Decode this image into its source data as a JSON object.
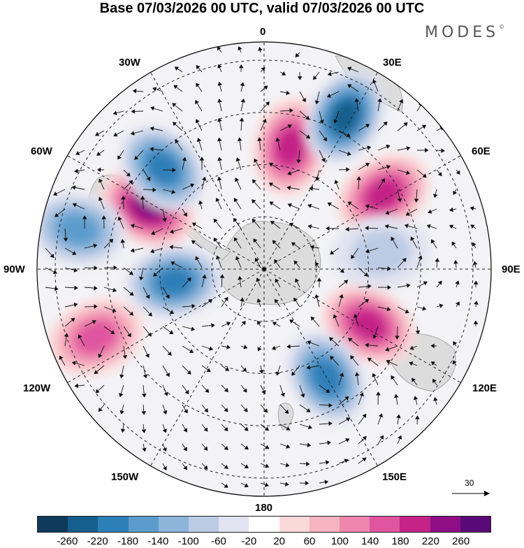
{
  "title": "Base 07/03/2026 00 UTC, valid 07/03/2026 00 UTC",
  "brand": "MODES",
  "brand_mark": "©",
  "longitude_labels": {
    "lon_0": "0",
    "lon_30e": "30E",
    "lon_60e": "60E",
    "lon_90e": "90E",
    "lon_120e": "120E",
    "lon_150e": "150E",
    "lon_180": "180",
    "lon_150w": "150W",
    "lon_120w": "120W",
    "lon_90w": "90W",
    "lon_60w": "60W",
    "lon_30w": "30W"
  },
  "vector_reference": {
    "value": "30"
  },
  "colorbar": {
    "colors": [
      "#0e3b5c",
      "#165e8c",
      "#2d7fb8",
      "#5c9ccc",
      "#8db5da",
      "#bccbe4",
      "#e2e3f0",
      "#ffffff",
      "#fbd9d9",
      "#f6b3c0",
      "#ee86ad",
      "#e0559f",
      "#c52387",
      "#8f0e85",
      "#5a0a78"
    ],
    "ticks": [
      "-260",
      "-220",
      "-180",
      "-140",
      "-100",
      "-60",
      "-20",
      "20",
      "60",
      "100",
      "140",
      "180",
      "220",
      "260"
    ]
  },
  "anomaly_cells": [
    {
      "lon": 12,
      "dist": 0.55,
      "value": 210
    },
    {
      "lon": 28,
      "dist": 0.76,
      "value": -240
    },
    {
      "lon": 58,
      "dist": 0.62,
      "value": 200
    },
    {
      "lon": 118,
      "dist": 0.52,
      "value": 220
    },
    {
      "lon": 150,
      "dist": 0.55,
      "value": -200
    },
    {
      "lon": -62,
      "dist": 0.58,
      "value": 250
    },
    {
      "lon": -98,
      "dist": 0.4,
      "value": -200
    },
    {
      "lon": -45,
      "dist": 0.63,
      "value": -230
    },
    {
      "lon": -112,
      "dist": 0.8,
      "value": 170
    },
    {
      "lon": -78,
      "dist": 0.84,
      "value": -160
    },
    {
      "lon": 82,
      "dist": 0.52,
      "value": -90
    }
  ]
}
